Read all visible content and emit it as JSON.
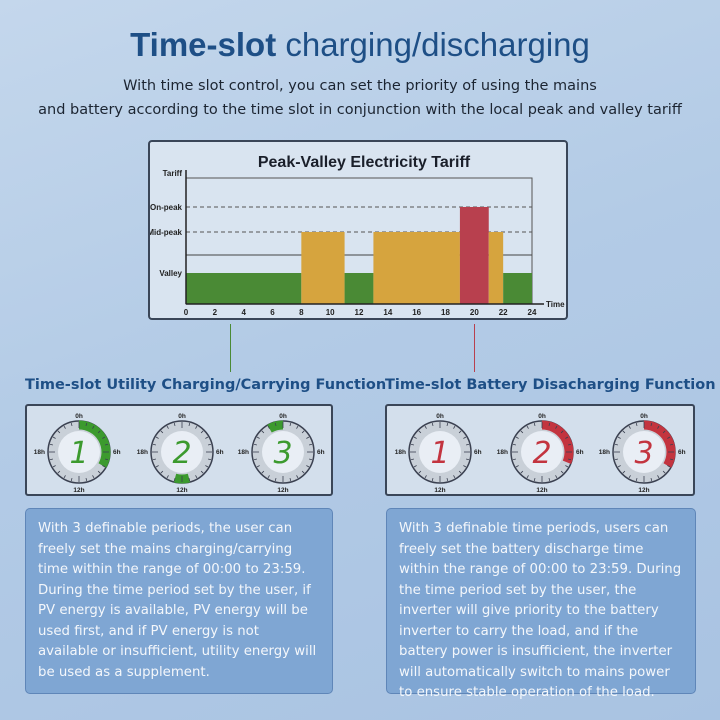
{
  "header": {
    "title_bold": "Time-slot",
    "title_rest": " charging/discharging",
    "subtitle_line1": "With time slot control, you can set the priority of using the mains",
    "subtitle_line2": "and battery according to the time slot in conjunction with the local peak and valley tariff"
  },
  "chart_data": {
    "type": "bar",
    "title": "Peak-Valley Electricity Tariff",
    "xlabel": "Time",
    "ylabel": "Tariff",
    "x_ticks": [
      "0",
      "2",
      "4",
      "6",
      "8",
      "10",
      "12",
      "14",
      "16",
      "18",
      "20",
      "22",
      "24"
    ],
    "y_levels": [
      "Valley",
      "Mid-peak",
      "On-peak"
    ],
    "xlim": [
      0,
      24
    ],
    "segments": [
      {
        "start": 0,
        "end": 8,
        "level": "Valley"
      },
      {
        "start": 8,
        "end": 11,
        "level": "Mid-peak"
      },
      {
        "start": 11,
        "end": 13,
        "level": "Valley"
      },
      {
        "start": 13,
        "end": 19,
        "level": "Mid-peak"
      },
      {
        "start": 19,
        "end": 21,
        "level": "On-peak"
      },
      {
        "start": 21,
        "end": 22,
        "level": "Mid-peak"
      },
      {
        "start": 22,
        "end": 24,
        "level": "Valley"
      }
    ],
    "colors": {
      "Valley": "#4a8a35",
      "Mid-peak": "#d6a43e",
      "On-peak": "#b8404e"
    }
  },
  "left": {
    "heading": "Time-slot Utility Charging/Carrying Function",
    "color": "#3c9a2e",
    "dials": [
      {
        "number": "1",
        "start": 0,
        "end": 8
      },
      {
        "number": "2",
        "start": 11,
        "end": 13
      },
      {
        "number": "3",
        "start": 22,
        "end": 24
      }
    ],
    "text": "With 3 definable periods, the user can freely set the mains charging/carrying time within the range of 00:00 to 23:59. During the time period set by the user, if PV energy is available, PV energy will be used first, and if PV energy is not available or insufficient, utility energy will be used as a supplement."
  },
  "right": {
    "heading": "Time-slot Battery Disacharging Function",
    "color": "#c3343f",
    "dials": [
      {
        "number": "1",
        "start": 0,
        "end": 0
      },
      {
        "number": "2",
        "start": 0,
        "end": 7.5
      },
      {
        "number": "3",
        "start": 0,
        "end": 8
      }
    ],
    "text": "With 3 definable time periods, users can freely set the battery discharge time within the range of 00:00 to 23:59. During the time period set by the user, the inverter will give priority to the battery inverter to carry the load, and if the battery power is insufficient, the inverter will automatically switch to mains power to ensure stable operation of the load."
  },
  "dial_labels": {
    "top": "0h",
    "right": "6h",
    "bottom": "12h",
    "left": "18h"
  }
}
